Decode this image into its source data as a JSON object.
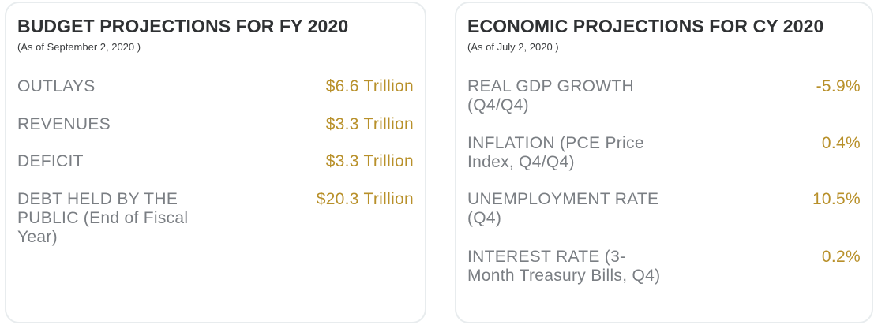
{
  "budget": {
    "title": "BUDGET PROJECTIONS FOR FY 2020",
    "subtitle": "(As of September 2, 2020 )",
    "rows": [
      {
        "label": "OUTLAYS",
        "value": "$6.6 Trillion"
      },
      {
        "label": "REVENUES",
        "value": "$3.3 Trillion"
      },
      {
        "label": "DEFICIT",
        "value": "$3.3 Trillion"
      },
      {
        "label": "DEBT HELD BY THE PUBLIC (End of Fiscal Year)",
        "value": "$20.3 Trillion"
      }
    ]
  },
  "economic": {
    "title": "ECONOMIC PROJECTIONS FOR CY 2020",
    "subtitle": "(As of July 2, 2020 )",
    "rows": [
      {
        "label": "REAL GDP GROWTH (Q4/Q4)",
        "value": "-5.9%"
      },
      {
        "label": "INFLATION (PCE Price Index, Q4/Q4)",
        "value": "0.4%"
      },
      {
        "label": "UNEMPLOYMENT RATE (Q4)",
        "value": "10.5%"
      },
      {
        "label": "INTEREST RATE (3-Month Treasury Bills, Q4)",
        "value": "0.2%"
      }
    ]
  },
  "colors": {
    "accent": "#b8902a",
    "label": "#7a7e83",
    "title": "#2f3133",
    "border": "#e8ecee"
  }
}
